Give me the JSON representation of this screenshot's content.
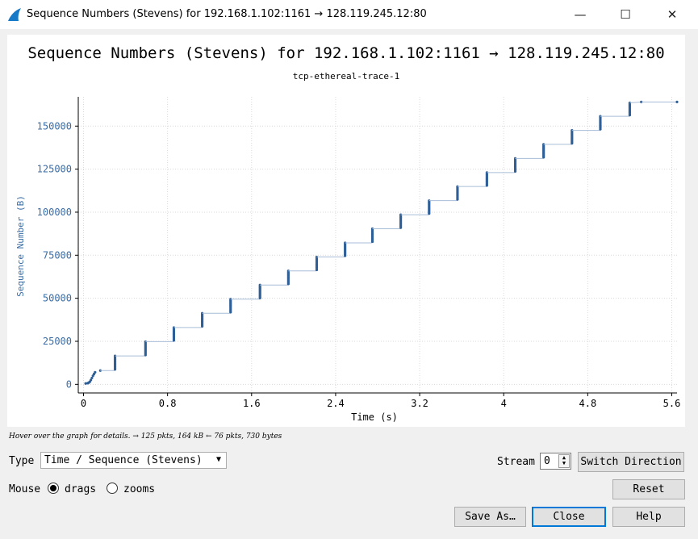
{
  "window": {
    "title": "Sequence Numbers (Stevens) for 192.168.1.102:1161 → 128.119.245.12:80",
    "minimize_glyph": "—",
    "maximize_glyph": "☐",
    "close_glyph": "✕"
  },
  "plot": {
    "title": "Sequence Numbers (Stevens) for 192.168.1.102:1161 → 128.119.245.12:80",
    "subtitle": "tcp-ethereal-trace-1"
  },
  "chart_data": {
    "type": "scatter",
    "title": "Sequence Numbers (Stevens) for 192.168.1.102:1161 → 128.119.245.12:80",
    "subtitle": "tcp-ethereal-trace-1",
    "xlabel": "Time (s)",
    "ylabel": "Sequence Number (B)",
    "xlim": [
      -0.05,
      5.65
    ],
    "ylim": [
      -5000,
      167000
    ],
    "xticks": [
      "0",
      "0.8",
      "1.6",
      "2.4",
      "3.2",
      "4",
      "4.8",
      "5.6"
    ],
    "xtick_values": [
      0,
      0.8,
      1.6,
      2.4,
      3.2,
      4.0,
      4.8,
      5.6
    ],
    "yticks": [
      "0",
      "25000",
      "50000",
      "75000",
      "100000",
      "125000",
      "150000"
    ],
    "ytick_values": [
      0,
      25000,
      50000,
      75000,
      100000,
      125000,
      150000
    ],
    "grid": true,
    "series_color": "#2e5f97",
    "step_line_color": "#a8bdd8",
    "steps": [
      {
        "t": 0.3,
        "from": 8700,
        "to": 16500
      },
      {
        "t": 0.59,
        "from": 17000,
        "to": 24800
      },
      {
        "t": 0.86,
        "from": 25500,
        "to": 33000
      },
      {
        "t": 1.13,
        "from": 33700,
        "to": 41300
      },
      {
        "t": 1.4,
        "from": 41900,
        "to": 49500
      },
      {
        "t": 1.68,
        "from": 50100,
        "to": 57700
      },
      {
        "t": 1.95,
        "from": 58300,
        "to": 65900
      },
      {
        "t": 2.22,
        "from": 66500,
        "to": 74000
      },
      {
        "t": 2.49,
        "from": 74700,
        "to": 82200
      },
      {
        "t": 2.75,
        "from": 82900,
        "to": 90400
      },
      {
        "t": 3.02,
        "from": 91000,
        "to": 98500
      },
      {
        "t": 3.29,
        "from": 99200,
        "to": 106700
      },
      {
        "t": 3.56,
        "from": 107400,
        "to": 114900
      },
      {
        "t": 3.84,
        "from": 115500,
        "to": 123000
      },
      {
        "t": 4.11,
        "from": 123700,
        "to": 131200
      },
      {
        "t": 4.38,
        "from": 131900,
        "to": 139400
      },
      {
        "t": 4.65,
        "from": 140000,
        "to": 147500
      },
      {
        "t": 4.92,
        "from": 148200,
        "to": 155700
      },
      {
        "t": 5.2,
        "from": 156400,
        "to": 163500
      }
    ],
    "initial_points": [
      {
        "x": 0.02,
        "y": 500
      },
      {
        "x": 0.04,
        "y": 700
      },
      {
        "x": 0.05,
        "y": 1000
      },
      {
        "x": 0.06,
        "y": 1500
      },
      {
        "x": 0.07,
        "y": 2500
      },
      {
        "x": 0.08,
        "y": 3700
      },
      {
        "x": 0.09,
        "y": 5000
      },
      {
        "x": 0.1,
        "y": 6000
      },
      {
        "x": 0.11,
        "y": 7000
      },
      {
        "x": 0.16,
        "y": 8000
      }
    ],
    "final_points": [
      {
        "x": 5.31,
        "y": 164000
      },
      {
        "x": 5.65,
        "y": 164000
      }
    ]
  },
  "status": {
    "hover_text": "Hover over the graph for details. → 125 pkts, 164 kB ← 76 pkts, 730 bytes"
  },
  "controls": {
    "type_label": "Type",
    "type_value": "Time / Sequence (Stevens)",
    "stream_label": "Stream",
    "stream_value": "0",
    "switch_direction_label": "Switch Direction",
    "mouse_label": "Mouse",
    "drags_label": "drags",
    "zooms_label": "zooms",
    "reset_label": "Reset",
    "save_as_label": "Save As…",
    "close_label": "Close",
    "help_label": "Help"
  }
}
